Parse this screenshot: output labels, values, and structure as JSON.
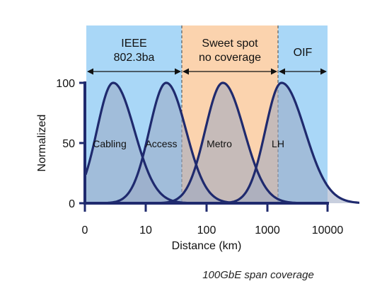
{
  "chart_data": {
    "type": "area",
    "xlabel": "Distance (km)",
    "ylabel": "Normalized",
    "x_ticks": [
      "0",
      "10",
      "100",
      "1000",
      "10000"
    ],
    "y_ticks": [
      "0",
      "50",
      "100"
    ],
    "ylim": [
      0,
      100
    ],
    "regions": [
      {
        "label_lines": [
          "IEEE",
          "802.3ba"
        ],
        "color": "#a9d7f7"
      },
      {
        "label_lines": [
          "Sweet spot",
          "no coverage"
        ],
        "color": "#fbd3ae"
      },
      {
        "label_lines": [
          "OIF"
        ],
        "color": "#a9d7f7"
      }
    ],
    "series": [
      {
        "name": "Cabling",
        "peak": 100
      },
      {
        "name": "Access",
        "peak": 100
      },
      {
        "name": "Metro",
        "peak": 100
      },
      {
        "name": "LH",
        "peak": 100
      }
    ],
    "curve_color": "#1f2a6e",
    "fill_color": "#9aa7c2"
  },
  "caption": "100GbE span coverage"
}
